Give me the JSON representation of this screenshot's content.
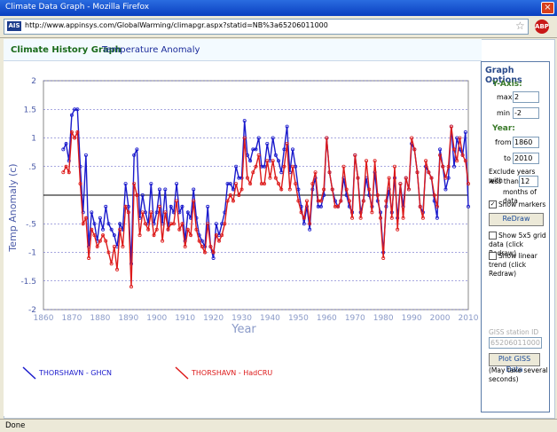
{
  "window": {
    "title": "Climate Data Graph - Mozilla Firefox",
    "close_label": "×"
  },
  "urlbar": {
    "favicon_label": "AIS",
    "url": "http://www.appinsys.com/GlobalWarming/climapgr.aspx?statid=NB%3a65206011000",
    "abp_label": "ABP"
  },
  "header": {
    "title": "Climate History Graph",
    "subtitle": "Temperature Anomaly"
  },
  "options": {
    "title": "Graph Options",
    "yaxis_label": "Y-Axis:",
    "max_label": "max",
    "max_value": "2",
    "min_label": "min",
    "min_value": "-2",
    "year_label": "Year:",
    "from_label": "from",
    "from_value": "1860",
    "to_label": "to",
    "to_value": "2010",
    "exclude_text_1": "Exclude years with",
    "exclude_text_2": "less than",
    "exclude_value": "12",
    "exclude_text_3": "months of data",
    "show_markers_label": "Show markers",
    "show_markers_checked": true,
    "redraw_label": "ReDraw",
    "grid_text_1": "Show 5x5 grid",
    "grid_text_2": "data (click Redraw)",
    "trend_text_1": "Show linear",
    "trend_text_2": "trend (click Redraw)",
    "giss_label": "GISS station ID",
    "giss_value": "65206011000",
    "plot_giss_label": "Plot GISS Data",
    "may_take_1": "(May take several",
    "may_take_2": "seconds)"
  },
  "status": {
    "text": "Done"
  },
  "chart_data": {
    "type": "line",
    "ylabel": "Temp Anomaly (c)",
    "xlabel": "Year",
    "ylim": [
      -2,
      2
    ],
    "xlim": [
      1860,
      2010
    ],
    "yticks": [
      "2",
      "1.5",
      "1",
      ".5",
      "",
      "-.5",
      "-1",
      "-1.5",
      "-2"
    ],
    "yvals": [
      2,
      1.5,
      1,
      0.5,
      0,
      -0.5,
      -1,
      -1.5,
      -2
    ],
    "xticks": [
      "1860",
      "1870",
      "1880",
      "1890",
      "1900",
      "1910",
      "1920",
      "1930",
      "1940",
      "1950",
      "1960",
      "1970",
      "1980",
      "1990",
      "2000",
      "2010"
    ],
    "grid": true,
    "colors": {
      "ghcn": "#1a1acc",
      "hadcru": "#dd1a1a",
      "grid": "#5050c0",
      "zero": "#000000"
    },
    "series": [
      {
        "name": "THORSHAVN - GHCN",
        "x": [
          1867,
          1868,
          1869,
          1870,
          1871,
          1872,
          1873,
          1874,
          1875,
          1876,
          1877,
          1878,
          1879,
          1880,
          1881,
          1882,
          1883,
          1884,
          1885,
          1886,
          1887,
          1888,
          1889,
          1890,
          1891,
          1892,
          1893,
          1894,
          1895,
          1896,
          1897,
          1898,
          1899,
          1900,
          1901,
          1902,
          1903,
          1904,
          1905,
          1906,
          1907,
          1908,
          1909,
          1910,
          1911,
          1912,
          1913,
          1914,
          1915,
          1916,
          1917,
          1918,
          1919,
          1920,
          1921,
          1922,
          1923,
          1924,
          1925,
          1926,
          1927,
          1928,
          1929,
          1930,
          1931,
          1932,
          1933,
          1934,
          1935,
          1936,
          1937,
          1938,
          1939,
          1940,
          1941,
          1942,
          1943,
          1944,
          1945,
          1946,
          1947,
          1948,
          1949,
          1950,
          1951,
          1952,
          1953,
          1954,
          1955,
          1956,
          1957,
          1958,
          1959,
          1960,
          1961,
          1962,
          1963,
          1964,
          1965,
          1966,
          1967,
          1968,
          1969,
          1970,
          1971,
          1972,
          1973,
          1974,
          1975,
          1976,
          1977,
          1978,
          1979,
          1980,
          1981,
          1982,
          1983,
          1984,
          1985,
          1986,
          1987,
          1988,
          1989,
          1990,
          1991,
          1992,
          1993,
          1994,
          1995,
          1996,
          1997,
          1998,
          1999,
          2000,
          2001,
          2002,
          2003,
          2004,
          2005,
          2006,
          2007,
          2008,
          2009,
          2010
        ],
        "y": [
          0.8,
          0.9,
          0.6,
          1.4,
          1.5,
          1.5,
          0.5,
          -0.3,
          0.7,
          -0.9,
          -0.3,
          -0.5,
          -0.8,
          -0.4,
          -0.6,
          -0.2,
          -0.5,
          -0.6,
          -0.7,
          -0.9,
          -0.5,
          -0.6,
          0.2,
          -0.2,
          -1.2,
          0.7,
          0.8,
          -0.4,
          0.0,
          -0.3,
          -0.5,
          0.2,
          -0.5,
          -0.3,
          0.1,
          -0.5,
          0.1,
          -0.6,
          -0.2,
          -0.3,
          0.2,
          -0.3,
          -0.2,
          -0.8,
          -0.3,
          -0.4,
          0.1,
          -0.4,
          -0.7,
          -0.8,
          -0.9,
          -0.2,
          -0.9,
          -1.1,
          -0.5,
          -0.7,
          -0.5,
          -0.3,
          0.2,
          0.2,
          0.1,
          0.5,
          0.3,
          0.3,
          1.3,
          0.7,
          0.6,
          0.8,
          0.8,
          1.0,
          0.5,
          0.5,
          0.9,
          0.6,
          1.0,
          0.7,
          0.6,
          0.4,
          0.8,
          1.2,
          0.4,
          0.8,
          0.5,
          0.1,
          -0.2,
          -0.5,
          -0.2,
          -0.6,
          0.1,
          0.3,
          -0.2,
          -0.2,
          0.0,
          1.0,
          0.4,
          0.1,
          -0.1,
          -0.2,
          -0.1,
          0.3,
          0.0,
          -0.2,
          -0.3,
          0.7,
          0.3,
          -0.3,
          -0.1,
          0.3,
          0.0,
          -0.2,
          0.4,
          -0.1,
          -0.3,
          -1.0,
          -0.2,
          0.1,
          -0.3,
          0.3,
          -0.4,
          0.2,
          -0.2,
          0.3,
          0.1,
          0.9,
          0.8,
          0.4,
          -0.2,
          -0.3,
          0.5,
          0.4,
          0.3,
          -0.1,
          -0.4,
          0.8,
          0.5,
          0.1,
          0.3,
          1.2,
          0.5,
          1.0,
          0.8,
          0.7,
          1.1,
          -0.2
        ]
      },
      {
        "name": "THORSHAVN - HadCRU",
        "x": [
          1867,
          1868,
          1869,
          1870,
          1871,
          1872,
          1873,
          1874,
          1875,
          1876,
          1877,
          1878,
          1879,
          1880,
          1881,
          1882,
          1883,
          1884,
          1885,
          1886,
          1887,
          1888,
          1889,
          1890,
          1891,
          1892,
          1893,
          1894,
          1895,
          1896,
          1897,
          1898,
          1899,
          1900,
          1901,
          1902,
          1903,
          1904,
          1905,
          1906,
          1907,
          1908,
          1909,
          1910,
          1911,
          1912,
          1913,
          1914,
          1915,
          1916,
          1917,
          1918,
          1919,
          1920,
          1921,
          1922,
          1923,
          1924,
          1925,
          1926,
          1927,
          1928,
          1929,
          1930,
          1931,
          1932,
          1933,
          1934,
          1935,
          1936,
          1937,
          1938,
          1939,
          1940,
          1941,
          1942,
          1943,
          1944,
          1945,
          1946,
          1947,
          1948,
          1949,
          1950,
          1951,
          1952,
          1953,
          1954,
          1955,
          1956,
          1957,
          1958,
          1959,
          1960,
          1961,
          1962,
          1963,
          1964,
          1965,
          1966,
          1967,
          1968,
          1969,
          1970,
          1971,
          1972,
          1973,
          1974,
          1975,
          1976,
          1977,
          1978,
          1979,
          1980,
          1981,
          1982,
          1983,
          1984,
          1985,
          1986,
          1987,
          1988,
          1989,
          1990,
          1991,
          1992,
          1993,
          1994,
          1995,
          1996,
          1997,
          1998,
          1999,
          2000,
          2001,
          2002,
          2003,
          2004,
          2005,
          2006,
          2007,
          2008,
          2009,
          2010
        ],
        "y": [
          0.4,
          0.5,
          0.4,
          1.1,
          1.0,
          1.1,
          0.2,
          -0.5,
          -0.4,
          -1.1,
          -0.6,
          -0.7,
          -0.9,
          -0.8,
          -0.7,
          -0.8,
          -1.0,
          -1.2,
          -0.9,
          -1.3,
          -0.6,
          -0.9,
          -0.2,
          -0.3,
          -1.6,
          0.2,
          0.0,
          -0.7,
          -0.3,
          -0.5,
          -0.6,
          -0.3,
          -0.7,
          -0.6,
          -0.2,
          -0.8,
          -0.3,
          -0.6,
          -0.5,
          -0.5,
          -0.1,
          -0.6,
          -0.5,
          -0.9,
          -0.6,
          -0.7,
          -0.1,
          -0.6,
          -0.8,
          -0.9,
          -1.0,
          -0.5,
          -0.9,
          -1.0,
          -0.7,
          -0.8,
          -0.7,
          -0.5,
          -0.1,
          0.0,
          -0.1,
          0.2,
          0.0,
          0.1,
          1.0,
          0.3,
          0.2,
          0.4,
          0.5,
          0.7,
          0.2,
          0.2,
          0.6,
          0.3,
          0.6,
          0.3,
          0.2,
          0.1,
          0.5,
          0.9,
          0.1,
          0.5,
          0.2,
          -0.1,
          -0.3,
          -0.4,
          -0.1,
          -0.5,
          0.2,
          0.4,
          -0.1,
          -0.1,
          0.1,
          1.0,
          0.4,
          0.1,
          -0.2,
          -0.2,
          -0.1,
          0.5,
          0.1,
          -0.1,
          -0.4,
          0.7,
          0.3,
          -0.4,
          -0.1,
          0.6,
          0.1,
          -0.3,
          0.6,
          0.0,
          -0.4,
          -1.1,
          -0.1,
          0.3,
          -0.4,
          0.5,
          -0.6,
          0.2,
          -0.4,
          0.3,
          0.1,
          1.0,
          0.8,
          0.4,
          -0.2,
          -0.4,
          0.6,
          0.4,
          0.3,
          0.0,
          -0.2,
          0.7,
          0.5,
          0.3,
          0.5,
          1.2,
          0.8,
          0.6,
          1.0,
          0.7,
          0.6,
          0.2
        ]
      }
    ]
  }
}
